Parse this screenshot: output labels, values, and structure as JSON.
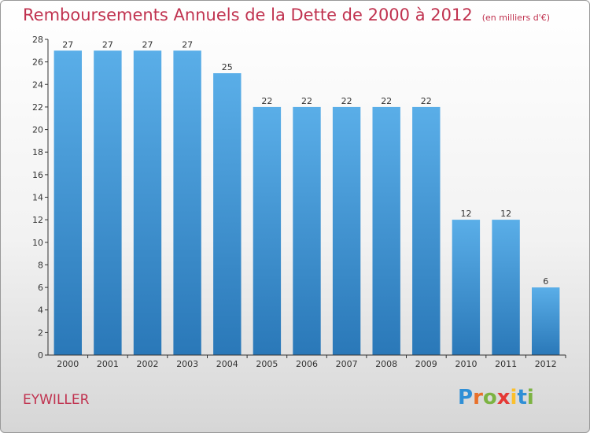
{
  "title": {
    "main": "Remboursements Annuels de la Dette de 2000 à 2012",
    "unit": "(en milliers d'€)"
  },
  "town": "EYWILLER",
  "logo": {
    "text": "Proxiti",
    "letters": [
      "P",
      "r",
      "o",
      "x",
      "i",
      "t",
      "i"
    ],
    "colors": [
      "#2f8fd6",
      "#e8702a",
      "#7cb342",
      "#e53935",
      "#fbc02d",
      "#2f8fd6",
      "#7cb342"
    ]
  },
  "colors": {
    "bar_top": "#5aaee8",
    "bar_bottom": "#2a78b8",
    "axis": "#333333",
    "text": "#333333"
  },
  "chart_data": {
    "type": "bar",
    "title": "Remboursements Annuels de la Dette de 2000 à 2012",
    "xlabel": "",
    "ylabel": "",
    "categories": [
      "2000",
      "2001",
      "2002",
      "2003",
      "2004",
      "2005",
      "2006",
      "2007",
      "2008",
      "2009",
      "2010",
      "2011",
      "2012"
    ],
    "values": [
      27,
      27,
      27,
      27,
      25,
      22,
      22,
      22,
      22,
      22,
      12,
      12,
      6
    ],
    "ylim": [
      0,
      28
    ],
    "yticks": [
      0,
      2,
      4,
      6,
      8,
      10,
      12,
      14,
      16,
      18,
      20,
      22,
      24,
      26,
      28
    ],
    "grid": false
  }
}
